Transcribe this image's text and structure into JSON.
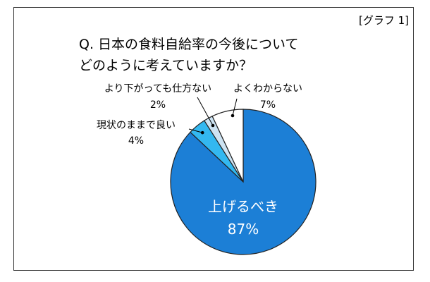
{
  "figure_tag": "[グラフ 1]",
  "title_lines": [
    "Q. 日本の食料自給率の今後について",
    "どのように考えていますか？"
  ],
  "chart_data": {
    "type": "pie",
    "title": "Q. 日本の食料自給率の今後について どのように考えていますか？",
    "slices": [
      {
        "label": "上げるべき",
        "value": 87,
        "display": "87%",
        "color": "#1c7fd6"
      },
      {
        "label": "現状のままで良い",
        "value": 4,
        "display": "4%",
        "color": "#33b8f0"
      },
      {
        "label": "より下がっても仕方ない",
        "value": 2,
        "display": "2%",
        "color": "#cde3f2"
      },
      {
        "label": "よくわからない",
        "value": 7,
        "display": "7%",
        "color": "#ffffff"
      }
    ],
    "start": "12 o'clock, clockwise",
    "legend": "none (callout labels)"
  }
}
